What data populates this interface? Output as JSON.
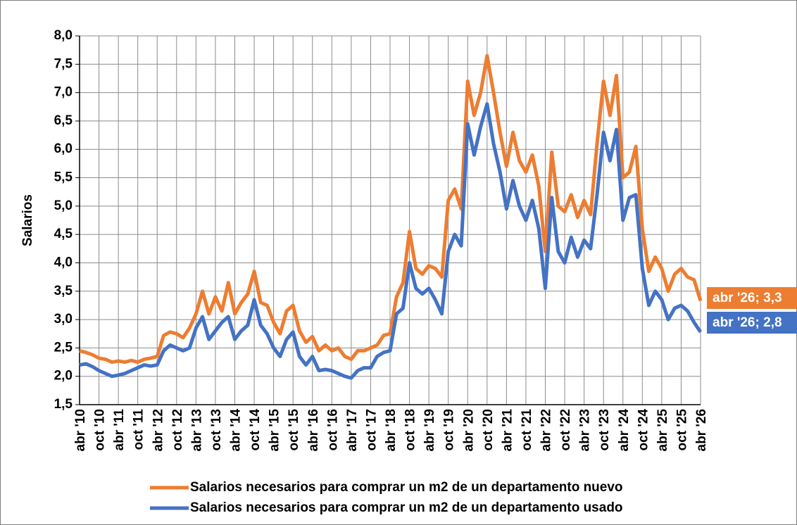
{
  "chart_data": {
    "type": "line",
    "y_label": "Salarios",
    "categories": [
      "abr '10",
      null,
      null,
      "oct '10",
      null,
      null,
      "abr '11",
      null,
      null,
      "oct '11",
      null,
      null,
      "abr '12",
      null,
      null,
      "oct '12",
      null,
      null,
      "abr '13",
      null,
      null,
      "oct '13",
      null,
      null,
      "abr '14",
      null,
      null,
      "oct '14",
      null,
      null,
      "abr '15",
      null,
      null,
      "oct '15",
      null,
      null,
      "abr '16",
      null,
      null,
      "oct '16",
      null,
      null,
      "abr '17",
      null,
      null,
      "oct '17",
      null,
      null,
      "abr '18",
      null,
      null,
      "oct '18",
      null,
      null,
      "abr '19",
      null,
      null,
      "oct '19",
      null,
      null,
      "abr '20",
      null,
      null,
      "oct '20",
      null,
      null,
      "abr '21",
      null,
      null,
      "oct '21",
      null,
      null,
      "abr '22",
      null,
      null,
      "oct '22",
      null,
      null,
      "abr '23",
      null,
      null,
      "oct '23",
      null,
      null,
      "abr '24",
      null,
      null,
      "oct '24",
      null,
      null,
      "abr '25",
      null,
      null,
      "oct '25",
      null,
      null,
      "abr '26"
    ],
    "series": [
      {
        "name": "Salarios necesarios para comprar un m2 de un departamento nuevo",
        "color": "#ed7d31",
        "values": [
          2.45,
          2.42,
          2.38,
          2.32,
          2.3,
          2.25,
          2.27,
          2.25,
          2.28,
          2.25,
          2.3,
          2.32,
          2.35,
          2.72,
          2.78,
          2.75,
          2.68,
          2.85,
          3.1,
          3.5,
          3.1,
          3.4,
          3.15,
          3.65,
          3.1,
          3.3,
          3.45,
          3.85,
          3.3,
          3.25,
          2.95,
          2.75,
          3.15,
          3.25,
          2.8,
          2.6,
          2.7,
          2.45,
          2.55,
          2.45,
          2.5,
          2.35,
          2.3,
          2.45,
          2.45,
          2.5,
          2.55,
          2.72,
          2.75,
          3.4,
          3.65,
          4.55,
          3.9,
          3.8,
          3.95,
          3.9,
          3.75,
          5.1,
          5.3,
          4.95,
          7.2,
          6.6,
          7.0,
          7.65,
          7.0,
          6.3,
          5.7,
          6.3,
          5.8,
          5.6,
          5.9,
          5.35,
          4.2,
          5.95,
          5.0,
          4.9,
          5.2,
          4.8,
          5.1,
          4.85,
          6.1,
          7.2,
          6.6,
          7.3,
          5.5,
          5.6,
          6.05,
          4.6,
          3.85,
          4.1,
          3.9,
          3.5,
          3.8,
          3.9,
          3.75,
          3.7,
          3.33
        ],
        "value_labels": [
          null,
          null,
          null,
          null,
          null,
          null,
          null,
          null,
          null,
          null,
          null,
          null,
          null,
          null,
          null,
          null,
          null,
          null,
          null,
          null,
          null,
          null,
          null,
          null,
          null,
          null,
          null,
          null,
          null,
          null,
          null,
          null,
          null,
          null,
          null,
          null,
          null,
          null,
          null,
          null,
          null,
          null,
          null,
          null,
          null,
          null,
          null,
          null,
          null,
          null,
          null,
          null,
          null,
          null,
          null,
          null,
          null,
          null,
          null,
          null,
          null,
          null,
          null,
          null,
          null,
          null,
          null,
          null,
          null,
          null,
          null,
          null,
          null,
          null,
          null,
          null,
          null,
          null,
          null,
          null,
          null,
          null,
          null,
          null,
          null,
          null,
          null,
          null,
          null,
          null,
          null,
          null,
          null,
          null,
          null,
          null,
          "abr '26; 3,3"
        ]
      },
      {
        "name": "Salarios necesarios para comprar un m2 de un departamento usado",
        "color": "#4472c4",
        "values": [
          2.2,
          2.22,
          2.17,
          2.1,
          2.05,
          2.0,
          2.02,
          2.05,
          2.1,
          2.15,
          2.2,
          2.18,
          2.2,
          2.45,
          2.55,
          2.5,
          2.45,
          2.5,
          2.85,
          3.05,
          2.65,
          2.8,
          2.95,
          3.05,
          2.65,
          2.8,
          2.9,
          3.35,
          2.9,
          2.75,
          2.5,
          2.35,
          2.65,
          2.78,
          2.35,
          2.2,
          2.35,
          2.1,
          2.12,
          2.1,
          2.05,
          2.0,
          1.97,
          2.1,
          2.15,
          2.15,
          2.35,
          2.42,
          2.45,
          3.1,
          3.2,
          4.0,
          3.55,
          3.45,
          3.55,
          3.35,
          3.1,
          4.2,
          4.5,
          4.3,
          6.45,
          5.9,
          6.4,
          6.8,
          6.1,
          5.6,
          4.95,
          5.45,
          5.0,
          4.75,
          5.1,
          4.6,
          3.55,
          5.15,
          4.2,
          4.0,
          4.45,
          4.1,
          4.4,
          4.25,
          5.2,
          6.3,
          5.8,
          6.35,
          4.75,
          5.15,
          5.2,
          3.9,
          3.25,
          3.5,
          3.35,
          3.0,
          3.2,
          3.25,
          3.15,
          2.95,
          2.78
        ],
        "value_labels": [
          null,
          null,
          null,
          null,
          null,
          null,
          null,
          null,
          null,
          null,
          null,
          null,
          null,
          null,
          null,
          null,
          null,
          null,
          null,
          null,
          null,
          null,
          null,
          null,
          null,
          null,
          null,
          null,
          null,
          null,
          null,
          null,
          null,
          null,
          null,
          null,
          null,
          null,
          null,
          null,
          null,
          null,
          null,
          null,
          null,
          null,
          null,
          null,
          null,
          null,
          null,
          null,
          null,
          null,
          null,
          null,
          null,
          null,
          null,
          null,
          null,
          null,
          null,
          null,
          null,
          null,
          null,
          null,
          null,
          null,
          null,
          null,
          null,
          null,
          null,
          null,
          null,
          null,
          null,
          null,
          null,
          null,
          null,
          null,
          null,
          null,
          null,
          null,
          null,
          null,
          null,
          null,
          null,
          null,
          null,
          null,
          "abr '26; 2,8"
        ]
      }
    ],
    "ylim": [
      1.5,
      8
    ],
    "yticks": [
      {
        "value": 1.5,
        "label": "1,5"
      },
      {
        "value": 2,
        "label": "2,0"
      },
      {
        "value": 2.5,
        "label": "2,5"
      },
      {
        "value": 3,
        "label": "3,0"
      },
      {
        "value": 3.5,
        "label": "3,5"
      },
      {
        "value": 4,
        "label": "4,0"
      },
      {
        "value": 4.5,
        "label": "4,5"
      },
      {
        "value": 5,
        "label": "5,0"
      },
      {
        "value": 5.5,
        "label": "5,5"
      },
      {
        "value": 6,
        "label": "6,0"
      },
      {
        "value": 6.5,
        "label": "6,5"
      },
      {
        "value": 7,
        "label": "7,0"
      },
      {
        "value": 7.5,
        "label": "7,5"
      },
      {
        "value": 8,
        "label": "8,0"
      }
    ],
    "grid": true,
    "legend": "bottom"
  }
}
